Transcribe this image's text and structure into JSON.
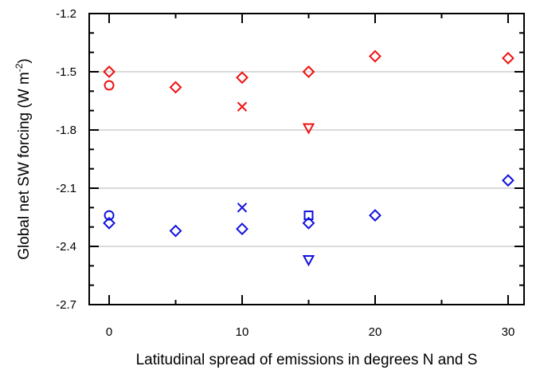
{
  "chart_data": {
    "type": "scatter",
    "xlabel": "Latitudinal  spread of emissions in degrees N and S",
    "ylabel_main": "Global net SW forcing (W m",
    "ylabel_sup": "-2",
    "ylabel_close": ")",
    "xlim": [
      -1.5,
      31.2
    ],
    "ylim": [
      -2.7,
      -1.2
    ],
    "x_ticks": [
      0,
      10,
      20,
      30
    ],
    "x_minor_ticks": [
      5,
      15,
      25
    ],
    "y_ticks": [
      -2.7,
      -2.4,
      -2.1,
      -1.8,
      -1.5,
      -1.2
    ],
    "y_tick_labels": [
      "-2.7",
      "-2.4",
      "-2.1",
      "-1.8",
      "-1.5",
      "-1.2"
    ],
    "y_gridlines": [
      -2.4,
      -2.1,
      -1.8,
      -1.5
    ],
    "grid": "horizontal",
    "colors": {
      "red": "#ee1111",
      "blue": "#1111dd",
      "grid": "#b4b4b4"
    },
    "points": [
      {
        "x": 0,
        "y": -1.5,
        "marker": "diamond",
        "color": "red"
      },
      {
        "x": 0,
        "y": -1.57,
        "marker": "circle",
        "color": "red"
      },
      {
        "x": 5,
        "y": -1.58,
        "marker": "diamond",
        "color": "red"
      },
      {
        "x": 10,
        "y": -1.53,
        "marker": "diamond",
        "color": "red"
      },
      {
        "x": 10,
        "y": -1.68,
        "marker": "x",
        "color": "red"
      },
      {
        "x": 15,
        "y": -1.5,
        "marker": "diamond",
        "color": "red"
      },
      {
        "x": 15,
        "y": -1.79,
        "marker": "triangle-down",
        "color": "red"
      },
      {
        "x": 20,
        "y": -1.42,
        "marker": "diamond",
        "color": "red"
      },
      {
        "x": 30,
        "y": -1.43,
        "marker": "diamond",
        "color": "red"
      },
      {
        "x": 0,
        "y": -2.24,
        "marker": "circle",
        "color": "blue"
      },
      {
        "x": 0,
        "y": -2.28,
        "marker": "diamond",
        "color": "blue"
      },
      {
        "x": 5,
        "y": -2.32,
        "marker": "diamond",
        "color": "blue"
      },
      {
        "x": 10,
        "y": -2.2,
        "marker": "x",
        "color": "blue"
      },
      {
        "x": 10,
        "y": -2.31,
        "marker": "diamond",
        "color": "blue"
      },
      {
        "x": 15,
        "y": -2.24,
        "marker": "square",
        "color": "blue"
      },
      {
        "x": 15,
        "y": -2.28,
        "marker": "diamond",
        "color": "blue"
      },
      {
        "x": 15,
        "y": -2.47,
        "marker": "triangle-down",
        "color": "blue"
      },
      {
        "x": 20,
        "y": -2.24,
        "marker": "diamond",
        "color": "blue"
      },
      {
        "x": 30,
        "y": -2.06,
        "marker": "diamond",
        "color": "blue"
      }
    ]
  }
}
